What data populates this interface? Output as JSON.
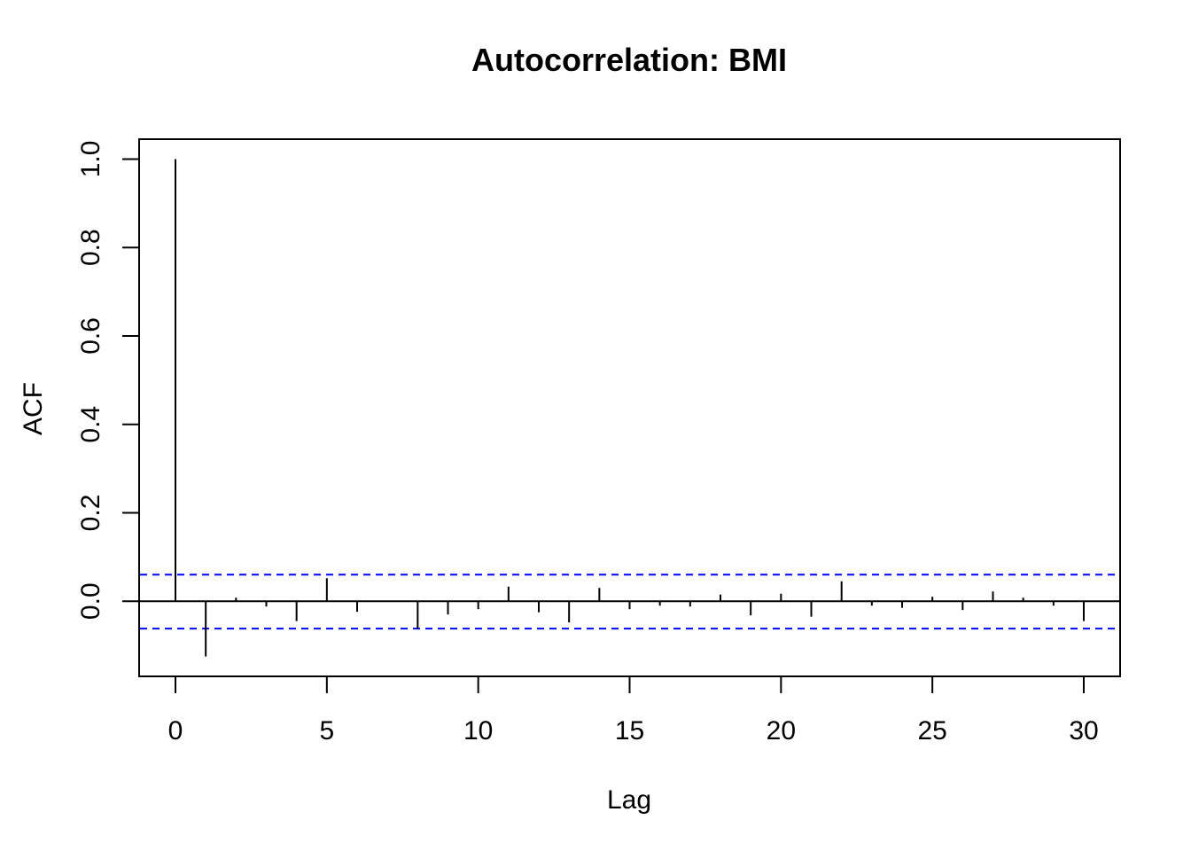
{
  "chart_data": {
    "type": "bar",
    "title": "Autocorrelation: BMI",
    "xlabel": "Lag",
    "ylabel": "ACF",
    "x": [
      0,
      1,
      2,
      3,
      4,
      5,
      6,
      7,
      8,
      9,
      10,
      11,
      12,
      13,
      14,
      15,
      16,
      17,
      18,
      19,
      20,
      21,
      22,
      23,
      24,
      25,
      26,
      27,
      28,
      29,
      30
    ],
    "values": [
      1.0,
      -0.125,
      0.008,
      -0.012,
      -0.045,
      0.052,
      -0.024,
      0.0,
      -0.062,
      -0.03,
      -0.018,
      0.033,
      -0.025,
      -0.048,
      0.03,
      -0.018,
      -0.01,
      -0.012,
      0.015,
      -0.032,
      0.017,
      -0.035,
      0.045,
      -0.01,
      -0.015,
      0.01,
      -0.02,
      0.022,
      0.008,
      -0.01,
      -0.045
    ],
    "confidence_bounds": [
      0.06,
      -0.062
    ],
    "xlim": [
      -1.2,
      31.2
    ],
    "ylim": [
      -0.17,
      1.045
    ],
    "xticks": [
      0,
      5,
      10,
      15,
      20,
      25,
      30
    ],
    "yticks": [
      0.0,
      0.2,
      0.4,
      0.6,
      0.8,
      1.0
    ],
    "xtick_labels": [
      "0",
      "5",
      "10",
      "15",
      "20",
      "25",
      "30"
    ],
    "ytick_labels": [
      "0.0",
      "0.2",
      "0.4",
      "0.6",
      "0.8",
      "1.0"
    ],
    "colors": {
      "bars": "#000000",
      "bounds": "#0000ff",
      "zero_line": "#000000"
    },
    "grid": false,
    "legend": "none"
  }
}
